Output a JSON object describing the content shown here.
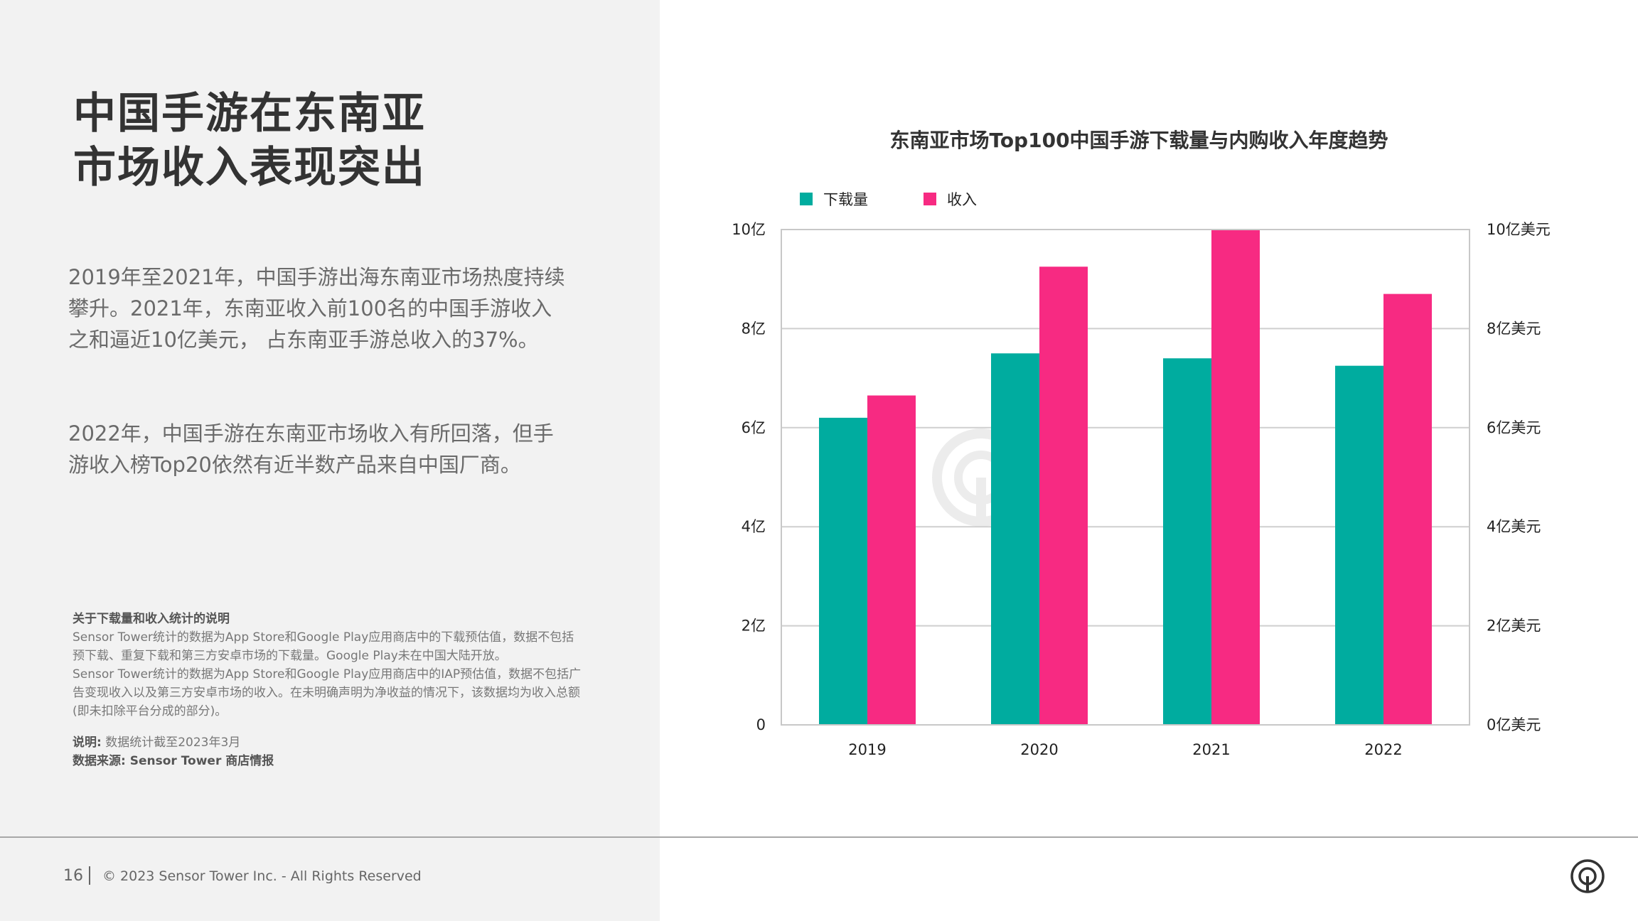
{
  "title": {
    "line1": "中国手游在东南亚",
    "line2": "市场收入表现突出"
  },
  "paragraphs": {
    "p1": "2019年至2021年，中国手游出海东南亚市场热度持续攀升。2021年，东南亚收入前100名的中国手游收入之和逼近10亿美元， 占东南亚手游总收入的37%。",
    "p2": "2022年，中国手游在东南亚市场收入有所回落，但手游收入榜Top20依然有近半数产品来自中国厂商。"
  },
  "notes": {
    "heading": "关于下载量和收入统计的说明",
    "line1": "Sensor Tower统计的数据为App Store和Google Play应用商店中的下载预估值，数据不包括预下载、重复下载和第三方安卓市场的下载量。Google Play未在中国大陆开放。",
    "line2": "Sensor Tower统计的数据为App Store和Google Play应用商店中的IAP预估值，数据不包括广告变现收入以及第三方安卓市场的收入。在未明确声明为净收益的情况下，该数据均为收入总额(即未扣除平台分成的部分)。",
    "explain_label": "说明:",
    "explain_text": "数据统计截至2023年3月",
    "source": "数据来源: Sensor Tower 商店情报"
  },
  "footer": {
    "page_number": "16",
    "copyright": "© 2023 Sensor Tower Inc. - All Rights Reserved"
  },
  "icons": {
    "footer_logo": "sensor-tower-logo-icon",
    "watermark": "sensor-tower-watermark-icon"
  },
  "chart_data": {
    "type": "bar",
    "title": "东南亚市场Top100中国手游下载量与内购收入年度趋势",
    "categories": [
      "2019",
      "2020",
      "2021",
      "2022"
    ],
    "series": [
      {
        "name": "下载量",
        "axis": "left",
        "color": "#00ac9f",
        "values": [
          6.2,
          7.5,
          7.4,
          7.25
        ],
        "unit": "亿"
      },
      {
        "name": "收入",
        "axis": "right",
        "color": "#f72a82",
        "values": [
          6.65,
          9.25,
          10.0,
          8.7
        ],
        "unit": "亿美元"
      }
    ],
    "y_left": {
      "ylim": [
        0,
        10
      ],
      "ticks": [
        0,
        2,
        4,
        6,
        8,
        10
      ],
      "tick_labels": [
        "0",
        "2亿",
        "4亿",
        "6亿",
        "8亿",
        "10亿"
      ]
    },
    "y_right": {
      "ylim": [
        0,
        10
      ],
      "ticks": [
        0,
        2,
        4,
        6,
        8,
        10
      ],
      "tick_labels": [
        "0亿美元",
        "2亿美元",
        "4亿美元",
        "6亿美元",
        "8亿美元",
        "10亿美元"
      ]
    },
    "grid": true,
    "legend": "top-left"
  }
}
